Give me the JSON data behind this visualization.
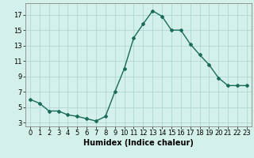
{
  "x": [
    0,
    1,
    2,
    3,
    4,
    5,
    6,
    7,
    8,
    9,
    10,
    11,
    12,
    13,
    14,
    15,
    16,
    17,
    18,
    19,
    20,
    21,
    22,
    23
  ],
  "y": [
    6.0,
    5.5,
    4.5,
    4.5,
    4.0,
    3.8,
    3.5,
    3.2,
    3.8,
    7.0,
    10.0,
    14.0,
    15.8,
    17.5,
    16.8,
    15.0,
    15.0,
    13.2,
    11.8,
    10.5,
    8.8,
    7.8,
    7.8,
    7.8
  ],
  "line_color": "#1a6b5a",
  "marker": "D",
  "marker_size": 2,
  "bg_color": "#d4f0ea",
  "grid_color": "#b0d8d0",
  "xlabel": "Humidex (Indice chaleur)",
  "xlabel_fontsize": 7,
  "xlabel_bold": true,
  "yticks": [
    3,
    5,
    7,
    9,
    11,
    13,
    15,
    17
  ],
  "ylim": [
    2.5,
    18.5
  ],
  "xlim": [
    -0.5,
    23.5
  ],
  "tick_fontsize": 6
}
